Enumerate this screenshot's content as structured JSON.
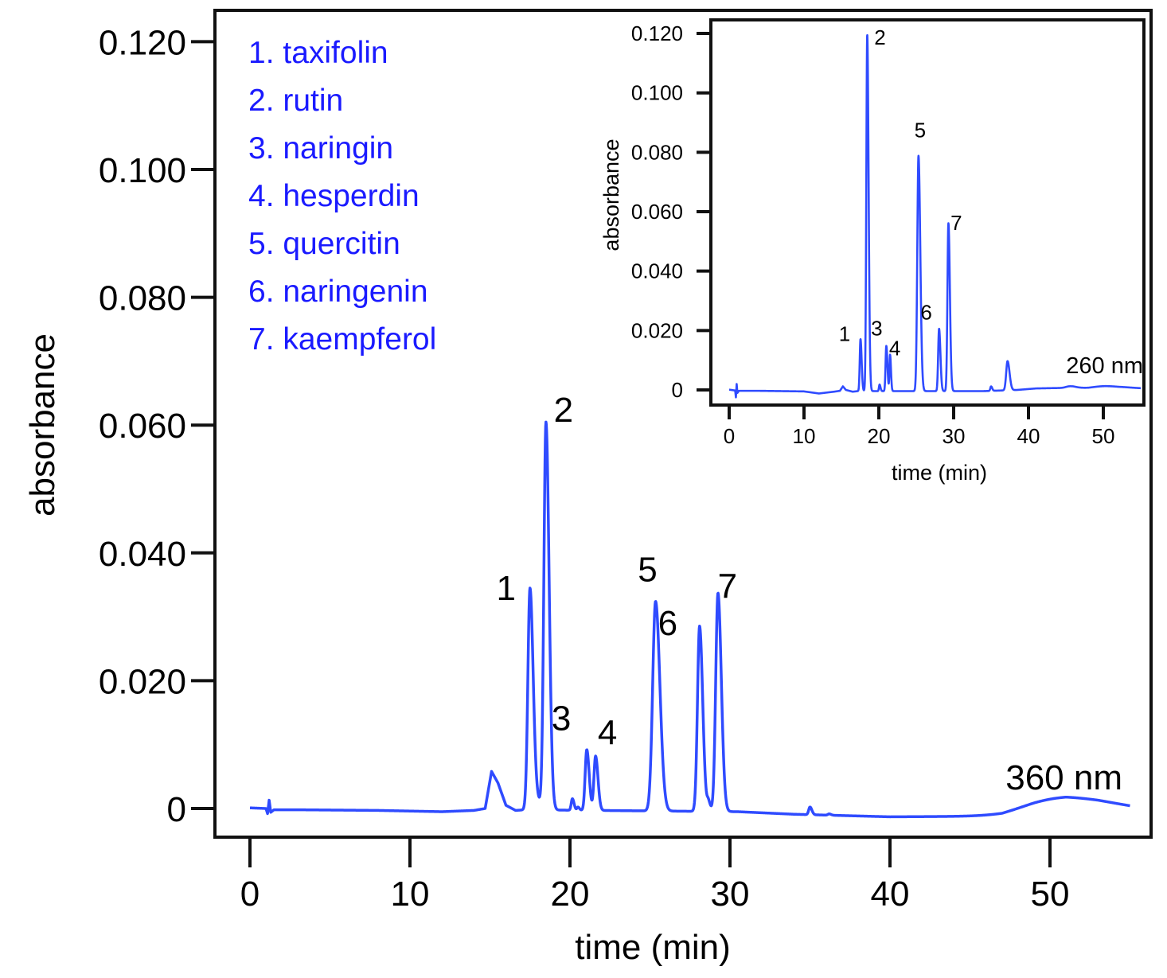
{
  "chart_data": [
    {
      "id": "main",
      "type": "line",
      "title": "",
      "xlabel": "time (min)",
      "ylabel": "absorbance",
      "xlim": [
        0,
        55
      ],
      "ylim": [
        -0.004,
        0.125
      ],
      "xticks": [
        0,
        10,
        20,
        30,
        40,
        50
      ],
      "xtick_labels": [
        "0",
        "10",
        "20",
        "30",
        "40",
        "50"
      ],
      "yticks": [
        0,
        0.02,
        0.04,
        0.06,
        0.08,
        0.1,
        0.12
      ],
      "ytick_labels": [
        "0",
        "0.020",
        "0.040",
        "0.060",
        "0.080",
        "0.100",
        "0.120"
      ],
      "grid": false,
      "wavelength_label": "360 nm",
      "series_color": "#2f4bff",
      "baseline": [
        [
          0,
          0.0001
        ],
        [
          1.0,
          0.0
        ],
        [
          1.1,
          -0.0008
        ],
        [
          1.2,
          0.0013
        ],
        [
          1.3,
          -0.0006
        ],
        [
          1.5,
          -0.0002
        ],
        [
          3,
          -0.0002
        ],
        [
          8,
          -0.0003
        ],
        [
          12,
          -0.0005
        ],
        [
          14,
          -0.0003
        ],
        [
          14.7,
          0.0
        ],
        [
          15.1,
          0.0058
        ],
        [
          15.5,
          0.004
        ],
        [
          16,
          0.0005
        ],
        [
          16.6,
          -0.0003
        ],
        [
          17.2,
          -0.0002
        ]
      ],
      "peaks": [
        {
          "label": "1",
          "compound": "taxifolin",
          "time": 17.5,
          "height": 0.0345,
          "width": 0.13
        },
        {
          "label": "2",
          "compound": "rutin",
          "time": 18.5,
          "height": 0.0605,
          "width": 0.13
        },
        {
          "label": "3",
          "compound": "naringin",
          "time": 21.05,
          "height": 0.0095,
          "width": 0.1
        },
        {
          "label": "4",
          "compound": "hesperdin",
          "time": 21.6,
          "height": 0.0085,
          "width": 0.1
        },
        {
          "label": "5",
          "compound": "quercitin",
          "time": 25.35,
          "height": 0.0328,
          "width": 0.18
        },
        {
          "label": "6",
          "compound": "naringenin",
          "time": 28.1,
          "height": 0.029,
          "width": 0.13
        },
        {
          "label": "7",
          "compound": "kaempferol",
          "time": 29.25,
          "height": 0.0342,
          "width": 0.14
        }
      ],
      "minor_peaks": [
        {
          "time": 17.9,
          "height": 0.0015,
          "width": 0.2
        },
        {
          "time": 20.15,
          "height": 0.0018,
          "width": 0.07
        },
        {
          "time": 20.5,
          "height": 0.0005,
          "width": 0.06
        },
        {
          "time": 28.65,
          "height": 0.0015,
          "width": 0.08
        },
        {
          "time": 35.0,
          "height": 0.0012,
          "width": 0.08
        },
        {
          "time": 36.2,
          "height": 0.0002,
          "width": 0.08
        },
        {
          "time": 50.5,
          "height": 0.0016,
          "width": 2.2
        }
      ],
      "tail": [
        [
          30.5,
          -0.0005
        ],
        [
          34,
          -0.0009
        ],
        [
          40,
          -0.0013
        ],
        [
          47,
          -0.0012
        ],
        [
          49,
          -0.0004
        ],
        [
          51,
          0.0002
        ],
        [
          53,
          0.0001
        ],
        [
          55,
          -0.0002
        ]
      ]
    },
    {
      "id": "inset",
      "type": "line",
      "title": "",
      "xlabel": "time (min)",
      "ylabel": "absorbance",
      "xlim": [
        -1.2,
        57.6
      ],
      "ylim": [
        -0.0045,
        0.125
      ],
      "xticks": [
        0,
        10,
        20,
        30,
        40,
        50
      ],
      "xtick_labels": [
        "0",
        "10",
        "20",
        "30",
        "40",
        "50"
      ],
      "yticks": [
        0,
        0.02,
        0.04,
        0.06,
        0.08,
        0.1,
        0.12
      ],
      "ytick_labels": [
        "0",
        "0.020",
        "0.040",
        "0.060",
        "0.080",
        "0.100",
        "0.120"
      ],
      "grid": false,
      "wavelength_label": "260 nm",
      "series_color": "#2f4bff",
      "baseline": [
        [
          0,
          0.0001
        ],
        [
          0.8,
          -0.0002
        ],
        [
          0.9,
          -0.0025
        ],
        [
          1.0,
          0.002
        ],
        [
          1.1,
          -0.001
        ],
        [
          1.3,
          -0.0003
        ],
        [
          4,
          -0.0003
        ],
        [
          10,
          -0.0005
        ],
        [
          12,
          -0.0012
        ],
        [
          14,
          -0.0006
        ],
        [
          14.8,
          -0.0003
        ],
        [
          15.2,
          0.0012
        ],
        [
          15.6,
          0.0
        ],
        [
          16.5,
          -0.0006
        ],
        [
          17.2,
          -0.0004
        ]
      ],
      "peaks": [
        {
          "label": "1",
          "compound": "taxifolin",
          "time": 17.55,
          "height": 0.0175,
          "width": 0.1
        },
        {
          "label": "2",
          "compound": "rutin",
          "time": 18.45,
          "height": 0.12,
          "width": 0.12
        },
        {
          "label": "3",
          "compound": "naringin",
          "time": 21.0,
          "height": 0.0152,
          "width": 0.1
        },
        {
          "label": "4",
          "compound": "hesperdin",
          "time": 21.5,
          "height": 0.0122,
          "width": 0.08
        },
        {
          "label": "5",
          "compound": "quercitin",
          "time": 25.3,
          "height": 0.0792,
          "width": 0.16
        },
        {
          "label": "6",
          "compound": "naringenin",
          "time": 28.05,
          "height": 0.021,
          "width": 0.12
        },
        {
          "label": "7",
          "compound": "kaempferol",
          "time": 29.3,
          "height": 0.0565,
          "width": 0.13
        }
      ],
      "minor_peaks": [
        {
          "time": 20.1,
          "height": 0.0022,
          "width": 0.08
        },
        {
          "time": 35.0,
          "height": 0.0015,
          "width": 0.1
        },
        {
          "time": 37.2,
          "height": 0.0098,
          "width": 0.18
        },
        {
          "time": 45.5,
          "height": 0.0005,
          "width": 0.5
        },
        {
          "time": 50.5,
          "height": 0.0012,
          "width": 2.0
        }
      ],
      "tail": [
        [
          30.2,
          -0.0004
        ],
        [
          34,
          -0.0004
        ],
        [
          38.5,
          0.0
        ],
        [
          41,
          0.0005
        ],
        [
          43,
          0.0006
        ],
        [
          46,
          0.0007
        ],
        [
          48,
          0.0002
        ],
        [
          52,
          0.0
        ],
        [
          55,
          0.0002
        ]
      ]
    }
  ],
  "legend": {
    "color": "#1a1aff",
    "items": [
      "1. taxifolin",
      "2. rutin",
      "3. naringin",
      "4. hesperdin",
      "5. quercitin",
      "6. naringenin",
      "7. kaempferol"
    ]
  }
}
